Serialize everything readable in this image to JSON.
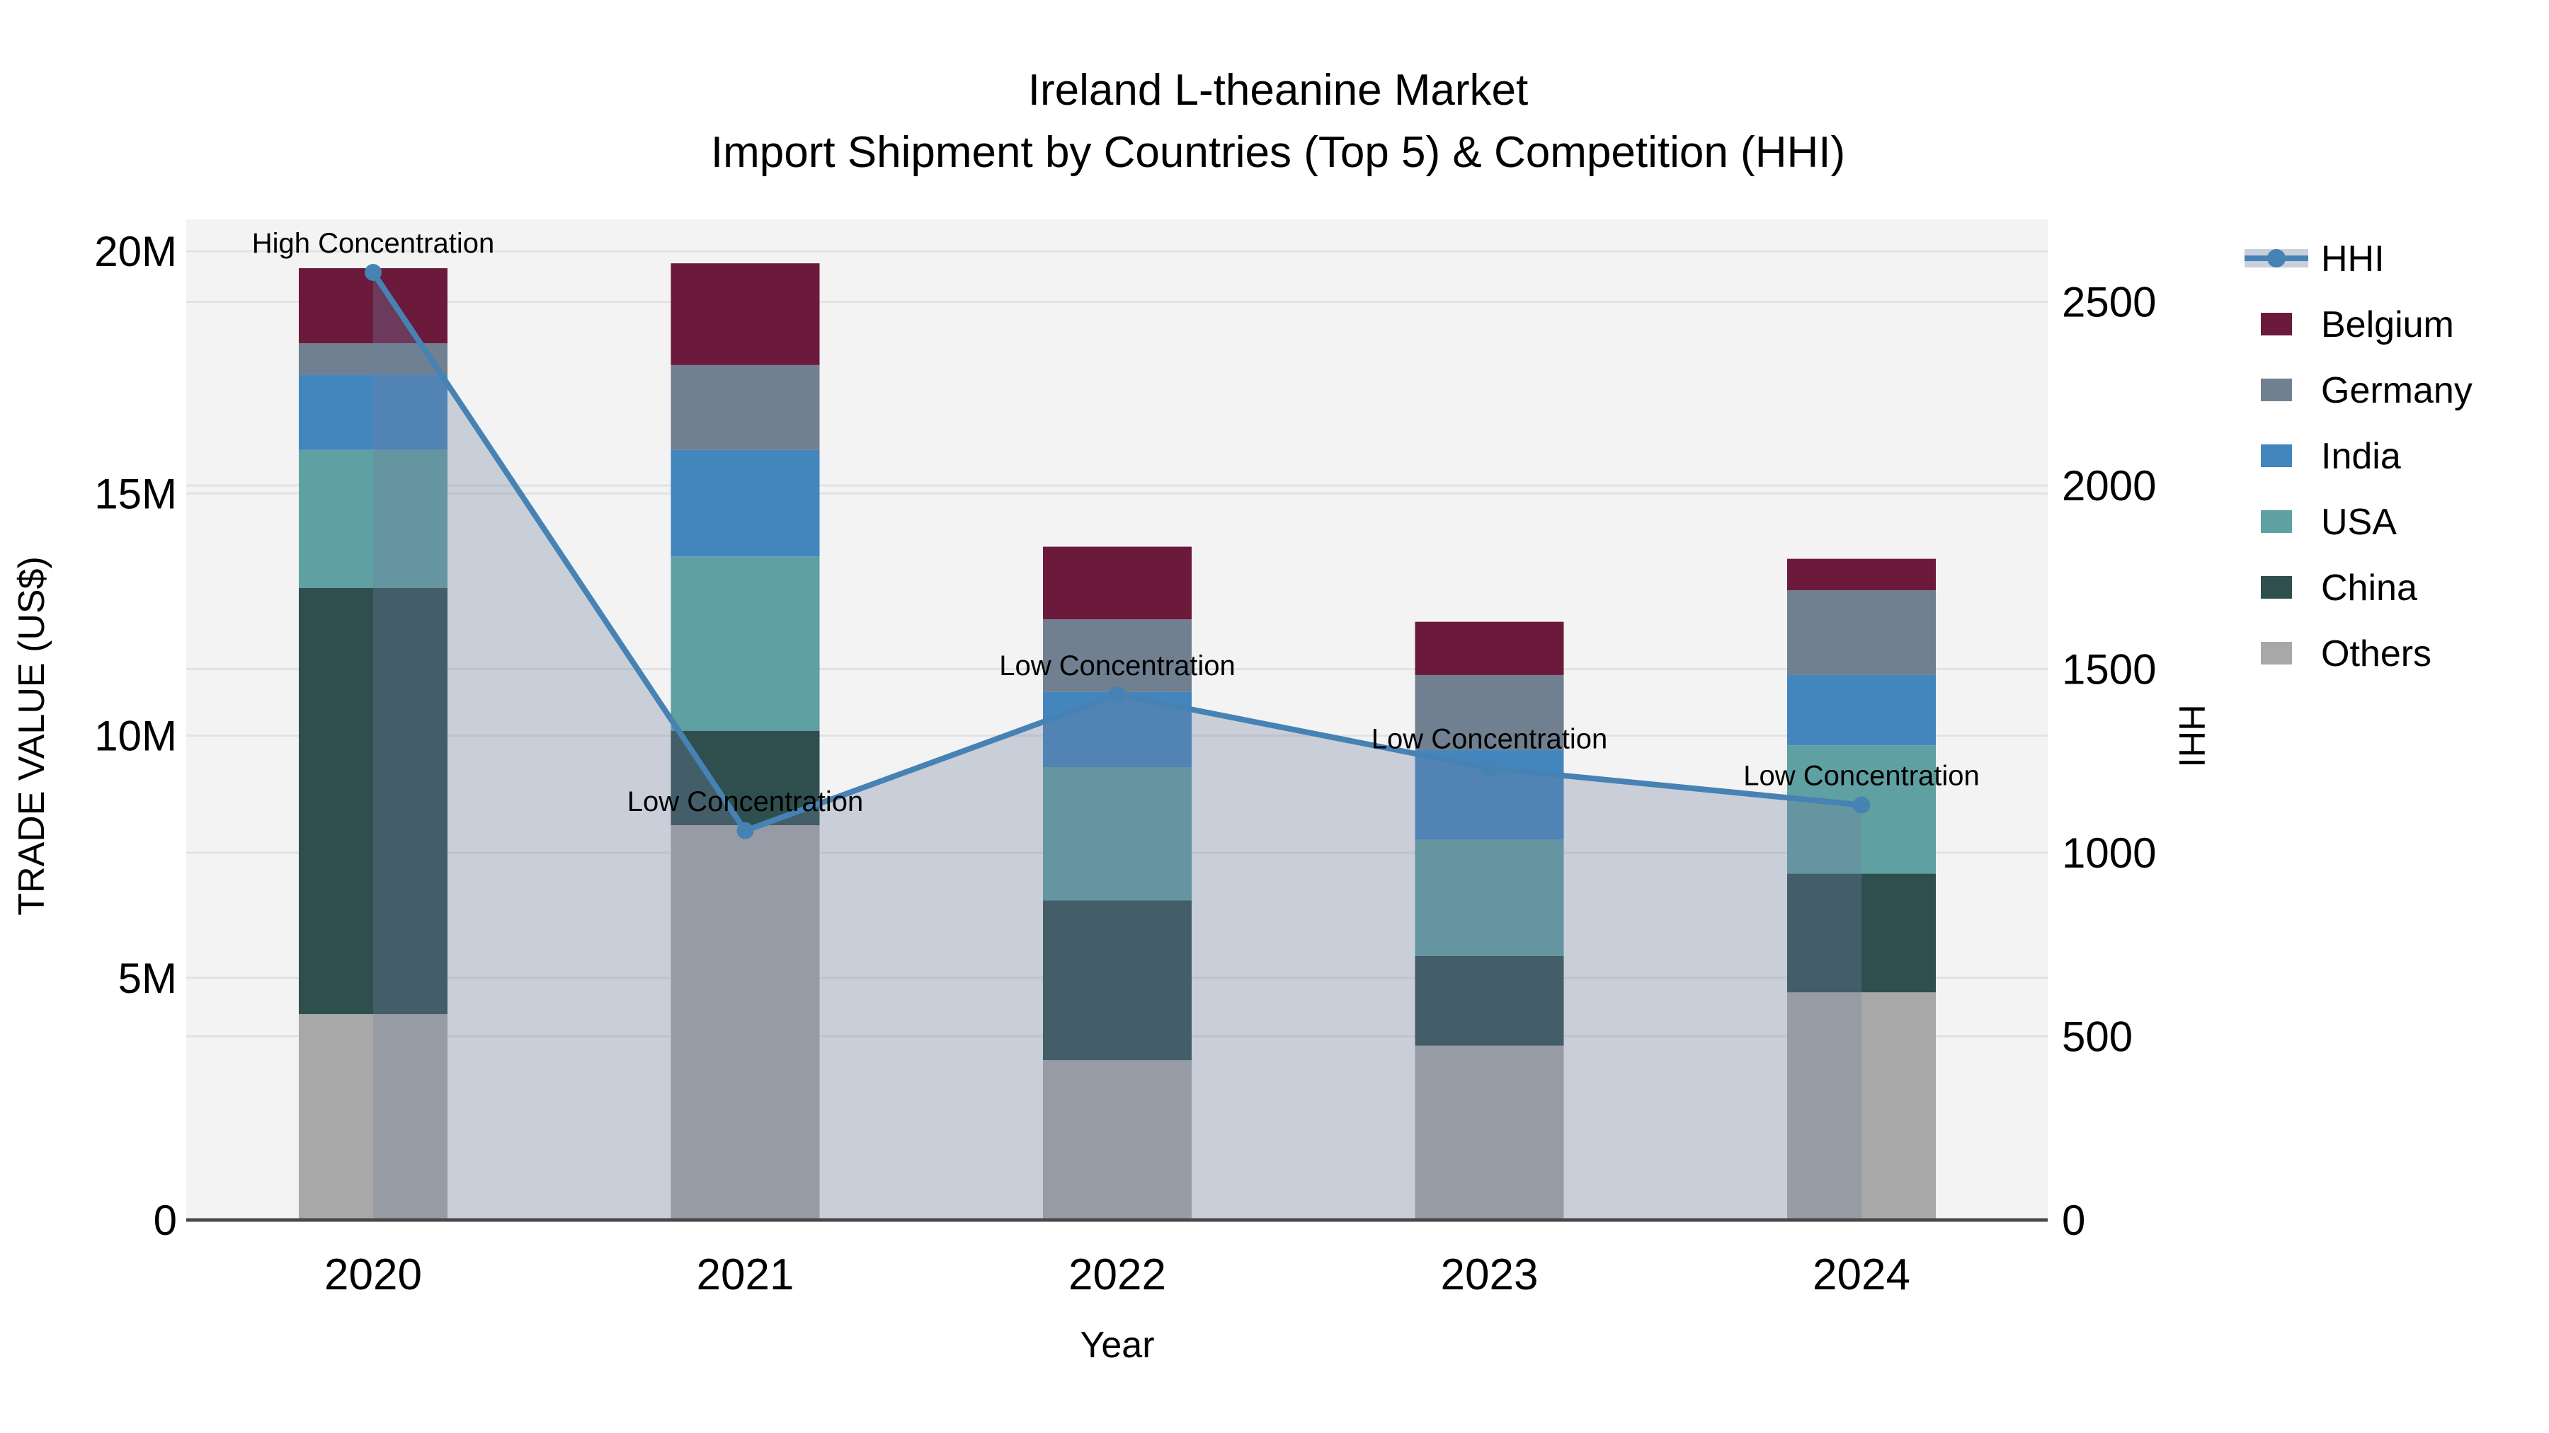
{
  "chart_data": {
    "type": "bar",
    "subtype": "stacked-bar-with-line",
    "title": "Ireland L-theanine Market",
    "subtitle": "Import Shipment by Countries (Top 5) & Competition (HHI)",
    "plot_bg_color": "#F3F3F3",
    "grid_color": "#E2E2E2",
    "axis_line_color": "#484848",
    "x": {
      "label": "Year",
      "categories": [
        "2020",
        "2021",
        "2022",
        "2023",
        "2024"
      ]
    },
    "y_left": {
      "label": "TRADE VALUE (US$)",
      "unit": "million US$",
      "ticks": [
        {
          "value": 0,
          "label": "0"
        },
        {
          "value": 5,
          "label": "5M"
        },
        {
          "value": 10,
          "label": "10M"
        },
        {
          "value": 15,
          "label": "15M"
        },
        {
          "value": 20,
          "label": "20M"
        }
      ],
      "grid_values": [
        5,
        10,
        15,
        20
      ],
      "range": [
        0,
        20.7
      ]
    },
    "y_right": {
      "label": "HHI",
      "ticks": [
        {
          "value": 0,
          "label": "0"
        },
        {
          "value": 500,
          "label": "500"
        },
        {
          "value": 1000,
          "label": "1000"
        },
        {
          "value": 1500,
          "label": "1500"
        },
        {
          "value": 2000,
          "label": "2000"
        },
        {
          "value": 2500,
          "label": "2500"
        }
      ],
      "grid_values": [
        500,
        1000,
        1500,
        2000,
        2500
      ],
      "range": [
        0,
        2725
      ]
    },
    "series": [
      {
        "name": "Belgium",
        "color": "#6B1A3C",
        "values": [
          1.55,
          2.1,
          1.5,
          1.1,
          0.65
        ]
      },
      {
        "name": "Germany",
        "color": "#708090",
        "values": [
          0.65,
          1.75,
          1.5,
          1.55,
          1.75
        ]
      },
      {
        "name": "India",
        "color": "#4386BE",
        "values": [
          1.55,
          2.2,
          1.55,
          1.85,
          1.45
        ]
      },
      {
        "name": "USA",
        "color": "#5FA0A2",
        "values": [
          2.85,
          3.6,
          2.75,
          2.4,
          2.65
        ]
      },
      {
        "name": "China",
        "color": "#2F4F4F",
        "values": [
          8.8,
          1.95,
          3.3,
          1.85,
          2.45
        ]
      },
      {
        "name": "Others",
        "color": "#A8A8A8",
        "values": [
          4.25,
          8.15,
          3.3,
          3.6,
          4.7
        ]
      }
    ],
    "bar_totals": [
      19.65,
      19.75,
      13.9,
      12.35,
      13.65
    ],
    "hhi": {
      "name": "HHI",
      "line_color": "#4682B4",
      "area_color": "rgba(112,128,160,0.32)",
      "legend_band_color": "#C9CFDB",
      "values": [
        2580,
        1060,
        1430,
        1230,
        1130
      ]
    },
    "annotations": [
      {
        "year": "2020",
        "text": "High Concentration"
      },
      {
        "year": "2021",
        "text": "Low Concentration"
      },
      {
        "year": "2022",
        "text": "Low Concentration"
      },
      {
        "year": "2023",
        "text": "Low Concentration"
      },
      {
        "year": "2024",
        "text": "Low Concentration"
      }
    ],
    "legend": {
      "position": "right",
      "items": [
        {
          "label": "HHI",
          "type": "line",
          "color": "#4682B4"
        },
        {
          "label": "Belgium",
          "type": "swatch",
          "color": "#6B1A3C"
        },
        {
          "label": "Germany",
          "type": "swatch",
          "color": "#708090"
        },
        {
          "label": "India",
          "type": "swatch",
          "color": "#4386BE"
        },
        {
          "label": "USA",
          "type": "swatch",
          "color": "#5FA0A2"
        },
        {
          "label": "China",
          "type": "swatch",
          "color": "#2F4F4F"
        },
        {
          "label": "Others",
          "type": "swatch",
          "color": "#A8A8A8"
        }
      ]
    }
  }
}
